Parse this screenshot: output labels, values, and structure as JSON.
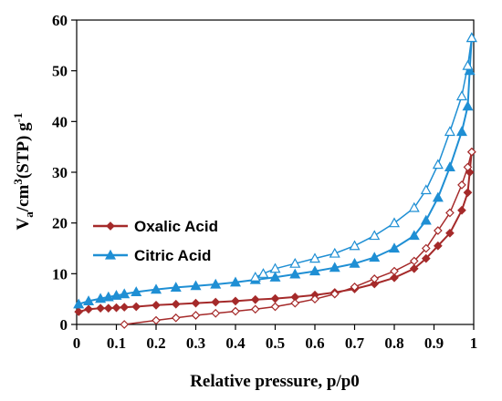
{
  "chart_data": {
    "type": "line",
    "xlabel": "Relative pressure, p/p0",
    "ylabel_parts": [
      "V",
      "a",
      "/cm",
      "3",
      "(STP) g",
      "-1"
    ],
    "xlim": [
      0,
      1
    ],
    "ylim": [
      0,
      60
    ],
    "xticks": [
      "0",
      "0.1",
      "0.2",
      "0.3",
      "0.4",
      "0.5",
      "0.6",
      "0.7",
      "0.8",
      "0.9",
      "1"
    ],
    "yticks": [
      "0",
      "10",
      "20",
      "30",
      "40",
      "50",
      "60"
    ],
    "grid": false,
    "legend_position": "center-left",
    "series": [
      {
        "name": "Oxalic Acid",
        "color": "#a52a2a",
        "marker": "diamond",
        "adsorption": [
          [
            0.005,
            2.5
          ],
          [
            0.03,
            3.0
          ],
          [
            0.06,
            3.2
          ],
          [
            0.08,
            3.2
          ],
          [
            0.1,
            3.3
          ],
          [
            0.12,
            3.4
          ],
          [
            0.15,
            3.5
          ],
          [
            0.2,
            3.8
          ],
          [
            0.25,
            4.0
          ],
          [
            0.3,
            4.2
          ],
          [
            0.35,
            4.4
          ],
          [
            0.4,
            4.6
          ],
          [
            0.45,
            4.9
          ],
          [
            0.5,
            5.1
          ],
          [
            0.55,
            5.4
          ],
          [
            0.6,
            5.8
          ],
          [
            0.65,
            6.3
          ],
          [
            0.7,
            7.0
          ],
          [
            0.75,
            8.0
          ],
          [
            0.8,
            9.2
          ],
          [
            0.85,
            11.0
          ],
          [
            0.88,
            13.0
          ],
          [
            0.91,
            15.5
          ],
          [
            0.94,
            18.0
          ],
          [
            0.97,
            22.5
          ],
          [
            0.985,
            26.0
          ],
          [
            0.99,
            30.0
          ],
          [
            0.995,
            34.0
          ]
        ],
        "desorption": [
          [
            0.995,
            34.0
          ],
          [
            0.985,
            31.0
          ],
          [
            0.97,
            27.5
          ],
          [
            0.94,
            22.0
          ],
          [
            0.91,
            18.5
          ],
          [
            0.88,
            15.0
          ],
          [
            0.85,
            12.5
          ],
          [
            0.8,
            10.5
          ],
          [
            0.75,
            9.0
          ],
          [
            0.7,
            7.4
          ],
          [
            0.65,
            6.0
          ],
          [
            0.6,
            5.0
          ],
          [
            0.55,
            4.2
          ],
          [
            0.5,
            3.5
          ],
          [
            0.45,
            3.0
          ],
          [
            0.4,
            2.6
          ],
          [
            0.35,
            2.2
          ],
          [
            0.3,
            1.8
          ],
          [
            0.25,
            1.3
          ],
          [
            0.2,
            0.8
          ],
          [
            0.12,
            0.0
          ]
        ]
      },
      {
        "name": "Citric Acid",
        "color": "#1f8fd4",
        "marker": "triangle",
        "adsorption": [
          [
            0.005,
            4.0
          ],
          [
            0.03,
            4.6
          ],
          [
            0.06,
            5.1
          ],
          [
            0.08,
            5.4
          ],
          [
            0.1,
            5.7
          ],
          [
            0.12,
            6.0
          ],
          [
            0.15,
            6.4
          ],
          [
            0.2,
            6.9
          ],
          [
            0.25,
            7.3
          ],
          [
            0.3,
            7.6
          ],
          [
            0.35,
            7.9
          ],
          [
            0.4,
            8.3
          ],
          [
            0.45,
            8.8
          ],
          [
            0.5,
            9.3
          ],
          [
            0.55,
            9.9
          ],
          [
            0.6,
            10.5
          ],
          [
            0.65,
            11.2
          ],
          [
            0.7,
            12.0
          ],
          [
            0.75,
            13.2
          ],
          [
            0.8,
            15.0
          ],
          [
            0.85,
            17.5
          ],
          [
            0.88,
            20.5
          ],
          [
            0.91,
            25.0
          ],
          [
            0.94,
            31.0
          ],
          [
            0.97,
            38.0
          ],
          [
            0.985,
            43.0
          ],
          [
            0.99,
            50.0
          ],
          [
            0.995,
            56.5
          ]
        ],
        "desorption": [
          [
            0.995,
            56.5
          ],
          [
            0.985,
            51.0
          ],
          [
            0.97,
            45.0
          ],
          [
            0.94,
            38.0
          ],
          [
            0.91,
            31.5
          ],
          [
            0.88,
            26.5
          ],
          [
            0.85,
            23.0
          ],
          [
            0.8,
            20.0
          ],
          [
            0.75,
            17.5
          ],
          [
            0.7,
            15.5
          ],
          [
            0.65,
            14.0
          ],
          [
            0.6,
            13.0
          ],
          [
            0.55,
            12.0
          ],
          [
            0.5,
            11.0
          ],
          [
            0.47,
            10.0
          ],
          [
            0.45,
            9.3
          ]
        ]
      }
    ]
  }
}
